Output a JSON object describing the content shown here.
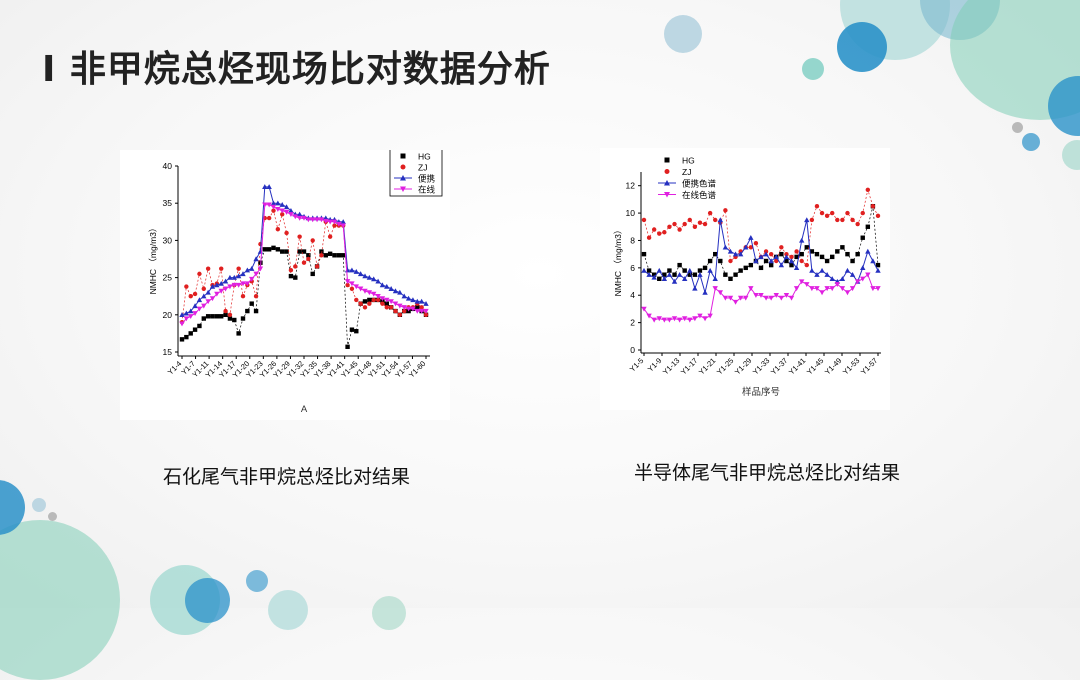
{
  "slide": {
    "title": "I 非甲烷总烃现场比对数据分析",
    "caption_left": "石化尾气非甲烷总烃比对结果",
    "caption_right": "半导体尾气非甲烷总烃比对结果"
  },
  "colors": {
    "HG": "#000000",
    "ZJ": "#e02020",
    "portable": "#2530c0",
    "online": "#e020e0"
  },
  "chart_data": [
    {
      "type": "line",
      "title": "",
      "xlabel": "A",
      "ylabel": "NMHC （mg/m3）",
      "ylim": [
        15,
        40
      ],
      "yticks": [
        15,
        20,
        25,
        30,
        35,
        40
      ],
      "x_ticklabels": [
        "Y1-4",
        "Y1-7",
        "Y1-11",
        "Y1-14",
        "Y1-17",
        "Y1-20",
        "Y1-23",
        "Y1-26",
        "Y1-29",
        "Y1-32",
        "Y1-35",
        "Y1-38",
        "Y1-41",
        "Y1-45",
        "Y1-48",
        "Y1-51",
        "Y1-54",
        "Y1-57",
        "Y1-60"
      ],
      "legend_position": "top-right",
      "series": [
        {
          "name": "HG",
          "marker": "square",
          "values": [
            16.7,
            17.0,
            17.5,
            18.0,
            18.5,
            19.5,
            19.8,
            19.8,
            19.8,
            19.8,
            20.0,
            19.5,
            19.3,
            17.5,
            19.5,
            20.5,
            21.5,
            20.5,
            27.0,
            28.8,
            28.8,
            29.0,
            28.8,
            28.5,
            28.5,
            25.2,
            25.0,
            28.5,
            28.5,
            28.0,
            25.5,
            26.5,
            28.5,
            28.0,
            28.2,
            28.0,
            28.0,
            28.0,
            15.7,
            18.0,
            17.8,
            21.5,
            21.8,
            22.0,
            22.0,
            22.0,
            21.8,
            21.5,
            21.0,
            20.5,
            20.0,
            20.5,
            20.5,
            20.8,
            21.0,
            20.5,
            20.0
          ]
        },
        {
          "name": "ZJ",
          "marker": "circle",
          "values": [
            19.0,
            23.8,
            22.5,
            22.8,
            25.5,
            23.5,
            26.2,
            24.0,
            24.2,
            26.2,
            20.5,
            20.0,
            24.0,
            26.2,
            22.5,
            24.0,
            24.5,
            22.5,
            29.5,
            33.0,
            33.0,
            34.0,
            31.5,
            33.5,
            31.0,
            26.0,
            26.5,
            30.5,
            27.0,
            27.5,
            30.0,
            26.5,
            28.0,
            32.5,
            30.5,
            32.0,
            32.0,
            32.0,
            24.0,
            23.5,
            22.0,
            21.5,
            21.0,
            21.5,
            22.0,
            22.0,
            21.5,
            21.0,
            21.0,
            20.5,
            20.0,
            20.5,
            21.0,
            21.0,
            21.5,
            21.0,
            20.0
          ]
        },
        {
          "name": "便携",
          "marker": "triangle-up",
          "values": [
            20.0,
            20.2,
            20.5,
            21.2,
            22.0,
            22.5,
            23.0,
            23.8,
            24.0,
            24.2,
            24.5,
            25.0,
            25.0,
            25.2,
            25.5,
            26.0,
            26.2,
            27.5,
            28.5,
            37.2,
            37.2,
            35.0,
            35.0,
            34.8,
            34.5,
            34.0,
            33.5,
            33.5,
            33.2,
            33.0,
            33.0,
            33.0,
            33.0,
            33.0,
            32.8,
            32.8,
            32.5,
            32.5,
            26.0,
            26.0,
            25.8,
            25.5,
            25.2,
            25.0,
            24.8,
            24.5,
            24.0,
            23.8,
            23.5,
            23.2,
            23.0,
            22.5,
            22.2,
            22.0,
            21.8,
            21.8,
            21.5
          ]
        },
        {
          "name": "在线",
          "marker": "triangle-down",
          "values": [
            18.8,
            19.5,
            19.8,
            20.2,
            20.8,
            21.2,
            21.8,
            22.2,
            22.8,
            23.2,
            23.5,
            23.8,
            24.0,
            24.0,
            24.2,
            24.2,
            24.8,
            25.5,
            26.2,
            34.8,
            34.8,
            34.5,
            34.2,
            34.0,
            33.8,
            33.5,
            33.2,
            33.0,
            33.0,
            32.8,
            32.8,
            32.8,
            32.8,
            32.6,
            32.5,
            32.5,
            32.2,
            32.0,
            24.5,
            24.2,
            23.8,
            23.5,
            23.2,
            23.0,
            22.8,
            22.5,
            22.2,
            22.0,
            21.8,
            21.5,
            21.2,
            21.0,
            20.8,
            20.8,
            20.5,
            20.5,
            20.5
          ]
        }
      ]
    },
    {
      "type": "line",
      "title": "",
      "xlabel": "样品序号",
      "ylabel": "NMHC （mg/m3）",
      "ylim": [
        0,
        13
      ],
      "yticks": [
        0,
        2,
        4,
        6,
        8,
        10,
        12
      ],
      "x_ticklabels": [
        "Y1-5",
        "Y1-9",
        "Y1-13",
        "Y1-17",
        "Y1-21",
        "Y1-25",
        "Y1-29",
        "Y1-33",
        "Y1-37",
        "Y1-41",
        "Y1-45",
        "Y1-49",
        "Y1-53",
        "Y1-57"
      ],
      "legend_position": "top-left",
      "series": [
        {
          "name": "HG",
          "marker": "square",
          "values": [
            7.0,
            5.8,
            5.5,
            5.2,
            5.5,
            5.8,
            5.5,
            6.2,
            5.8,
            5.5,
            5.5,
            5.8,
            6.0,
            6.5,
            7.0,
            6.5,
            5.5,
            5.2,
            5.5,
            5.8,
            6.0,
            6.2,
            6.5,
            6.0,
            6.5,
            6.2,
            6.8,
            7.0,
            6.5,
            6.2,
            6.8,
            7.0,
            7.5,
            7.2,
            7.0,
            6.8,
            6.5,
            6.8,
            7.2,
            7.5,
            7.0,
            6.5,
            7.0,
            8.2,
            9.0,
            10.5,
            6.2
          ]
        },
        {
          "name": "ZJ",
          "marker": "circle",
          "values": [
            9.5,
            8.2,
            8.8,
            8.5,
            8.6,
            9.0,
            9.2,
            8.8,
            9.2,
            9.5,
            9.0,
            9.3,
            9.2,
            10.0,
            9.5,
            9.3,
            10.2,
            6.5,
            6.8,
            7.2,
            7.5,
            7.5,
            7.8,
            6.8,
            7.2,
            7.0,
            6.5,
            7.5,
            7.0,
            6.8,
            7.2,
            6.5,
            6.2,
            9.5,
            10.5,
            10.0,
            9.8,
            10.0,
            9.5,
            9.5,
            10.0,
            9.5,
            9.2,
            10.0,
            11.7,
            10.5,
            9.8
          ]
        },
        {
          "name": "便携色谱",
          "marker": "triangle-up",
          "values": [
            5.8,
            5.5,
            5.3,
            5.8,
            5.2,
            5.5,
            5.0,
            5.5,
            5.2,
            5.8,
            4.5,
            5.5,
            4.2,
            5.8,
            5.2,
            9.5,
            7.5,
            7.2,
            7.0,
            7.0,
            7.5,
            8.2,
            6.5,
            6.8,
            7.0,
            6.5,
            6.8,
            6.2,
            6.8,
            6.5,
            6.0,
            8.0,
            9.5,
            5.8,
            5.5,
            5.8,
            5.5,
            5.2,
            5.0,
            5.2,
            5.8,
            5.5,
            5.0,
            6.0,
            7.2,
            6.5,
            5.8
          ]
        },
        {
          "name": "在线色谱",
          "marker": "triangle-down",
          "values": [
            3.0,
            2.5,
            2.2,
            2.3,
            2.2,
            2.2,
            2.3,
            2.2,
            2.3,
            2.2,
            2.3,
            2.5,
            2.3,
            2.5,
            4.5,
            4.2,
            3.8,
            3.8,
            3.5,
            3.8,
            3.8,
            4.5,
            4.0,
            4.0,
            3.8,
            3.8,
            4.0,
            3.8,
            4.0,
            3.8,
            4.5,
            5.0,
            4.8,
            4.5,
            4.5,
            4.2,
            4.5,
            4.5,
            4.8,
            4.5,
            4.2,
            4.5,
            5.0,
            5.2,
            5.5,
            4.5,
            4.5
          ]
        }
      ]
    }
  ]
}
